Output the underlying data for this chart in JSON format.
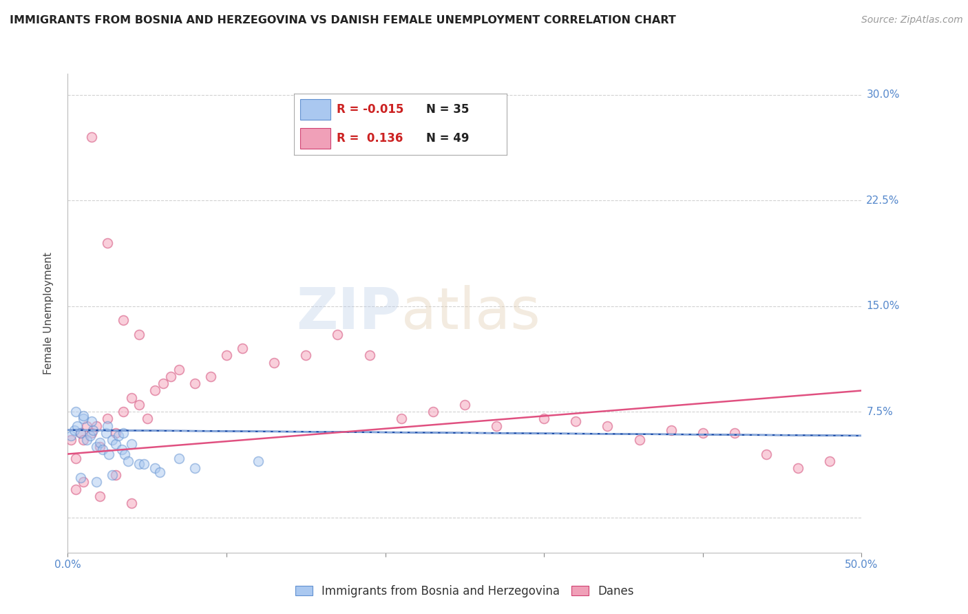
{
  "title": "IMMIGRANTS FROM BOSNIA AND HERZEGOVINA VS DANISH FEMALE UNEMPLOYMENT CORRELATION CHART",
  "source": "Source: ZipAtlas.com",
  "ylabel": "Female Unemployment",
  "yticks": [
    0.0,
    0.075,
    0.15,
    0.225,
    0.3
  ],
  "ytick_labels": [
    "",
    "7.5%",
    "15.0%",
    "22.5%",
    "30.0%"
  ],
  "xlim": [
    0.0,
    0.5
  ],
  "ylim": [
    -0.025,
    0.315
  ],
  "legend_entries": [
    {
      "label": "Immigrants from Bosnia and Herzegovina",
      "R": "-0.015",
      "N": "35",
      "color": "#aac8f0"
    },
    {
      "label": "Danes",
      "R": "0.136",
      "N": "49",
      "color": "#f0a0b8"
    }
  ],
  "blue_scatter_x": [
    0.002,
    0.004,
    0.006,
    0.008,
    0.01,
    0.012,
    0.014,
    0.016,
    0.018,
    0.02,
    0.022,
    0.024,
    0.026,
    0.028,
    0.03,
    0.032,
    0.034,
    0.036,
    0.038,
    0.04,
    0.005,
    0.01,
    0.015,
    0.025,
    0.035,
    0.045,
    0.055,
    0.008,
    0.018,
    0.028,
    0.048,
    0.058,
    0.07,
    0.08,
    0.12
  ],
  "blue_scatter_y": [
    0.058,
    0.062,
    0.065,
    0.06,
    0.07,
    0.055,
    0.058,
    0.062,
    0.05,
    0.053,
    0.048,
    0.06,
    0.045,
    0.055,
    0.052,
    0.058,
    0.048,
    0.045,
    0.04,
    0.052,
    0.075,
    0.072,
    0.068,
    0.065,
    0.06,
    0.038,
    0.035,
    0.028,
    0.025,
    0.03,
    0.038,
    0.032,
    0.042,
    0.035,
    0.04
  ],
  "pink_scatter_x": [
    0.002,
    0.005,
    0.008,
    0.01,
    0.012,
    0.015,
    0.018,
    0.02,
    0.025,
    0.03,
    0.035,
    0.04,
    0.045,
    0.05,
    0.055,
    0.06,
    0.065,
    0.07,
    0.08,
    0.09,
    0.1,
    0.11,
    0.13,
    0.15,
    0.17,
    0.19,
    0.21,
    0.23,
    0.25,
    0.27,
    0.3,
    0.32,
    0.34,
    0.36,
    0.38,
    0.4,
    0.42,
    0.44,
    0.46,
    0.48,
    0.015,
    0.025,
    0.035,
    0.045,
    0.005,
    0.01,
    0.02,
    0.03,
    0.04
  ],
  "pink_scatter_y": [
    0.055,
    0.042,
    0.06,
    0.055,
    0.065,
    0.06,
    0.065,
    0.05,
    0.07,
    0.06,
    0.075,
    0.085,
    0.08,
    0.07,
    0.09,
    0.095,
    0.1,
    0.105,
    0.095,
    0.1,
    0.115,
    0.12,
    0.11,
    0.115,
    0.13,
    0.115,
    0.07,
    0.075,
    0.08,
    0.065,
    0.07,
    0.068,
    0.065,
    0.055,
    0.062,
    0.06,
    0.06,
    0.045,
    0.035,
    0.04,
    0.27,
    0.195,
    0.14,
    0.13,
    0.02,
    0.025,
    0.015,
    0.03,
    0.01
  ],
  "blue_trend_x": [
    0.0,
    0.5
  ],
  "blue_trend_y": [
    0.062,
    0.058
  ],
  "pink_trend_x": [
    0.0,
    0.5
  ],
  "pink_trend_y": [
    0.045,
    0.09
  ],
  "scatter_alpha": 0.5,
  "scatter_size": 100,
  "scatter_linewidth": 1.2,
  "blue_color": "#aac8f0",
  "blue_edge_color": "#6090d0",
  "pink_color": "#f4a0b8",
  "pink_edge_color": "#d04070",
  "blue_trend_color": "#2050aa",
  "blue_trend_dash_color": "#88aadd",
  "pink_trend_color": "#e05080",
  "grid_color": "#cccccc",
  "background_color": "#ffffff",
  "title_fontsize": 11.5,
  "source_fontsize": 10,
  "axis_label_fontsize": 11,
  "tick_fontsize": 11,
  "legend_fontsize": 12,
  "ytick_color": "#5588cc",
  "xtick_color": "#5588cc"
}
